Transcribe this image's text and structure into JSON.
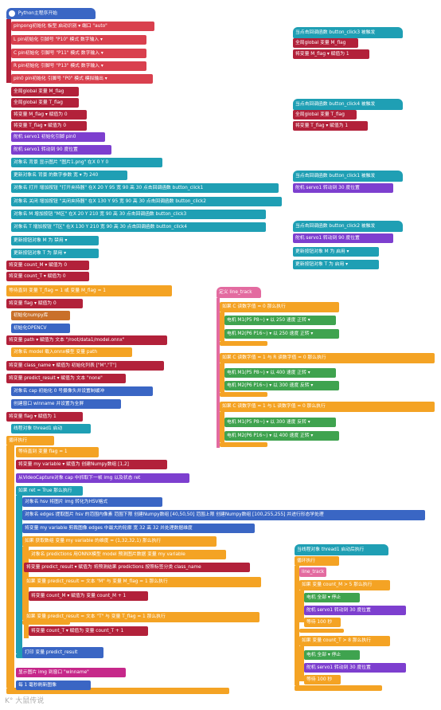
{
  "main": {
    "hat": "Python主程序开始",
    "rows": [
      "pinpong初始化 板型 启动识别 ▾ 端口 \"auto\"",
      "L pin初始化 引脚号 \"P10\" 模式 数字输入 ▾",
      "C pin初始化 引脚号 \"P11\" 模式 数字输入 ▾",
      "R pin初始化 引脚号 \"P13\" 模式 数字输入 ▾",
      "pin0 pin初始化 引脚号 \"P0\" 模式 模拟输出 ▾",
      "全局global 变量 M_flag",
      "全局global 变量 T_flag",
      "将变量 M_flag ▾ 赋值为 0",
      "将变量 T_flag ▾ 赋值为 0",
      "舵机 servo1 初始化引脚 pin0",
      "舵机 servo1 转动到 90 度位置",
      "对象名 背景 显示图片 \"图片1.png\" 在X 0 Y 0",
      "更新对象名 背景 的数字参数 宽 ▾ 为 240",
      "对象名 打开 增加按钮 \"打开夹持器\" 在X 20 Y 95 宽 90 高 30 点击回调函数 button_click1",
      "对象名 关闭 增加按钮 \"关闭夹持器\" 在X 130 Y 95 宽 90 高 30 点击回调函数 button_click2",
      "对象名 M 增加按钮 \"M区\" 在X 20 Y 210 宽 90 高 30 点击回调函数 button_click3",
      "对象名 T 增加按钮 \"T区\" 在X 130 Y 210 宽 90 高 30 点击回调函数 button_click4",
      "更新按钮对象 M 为 禁用 ▾",
      "更新按钮对象 T 为 禁用 ▾",
      "将变量 count_M ▾ 赋值为 0",
      "将变量 count_T ▾ 赋值为 0",
      "等待直到 变量 T_flag = 1 或 变量 M_flag = 1",
      "将变量 flag ▾ 赋值为 0",
      "初始化numpy库",
      "初始化OPENCV",
      "将变量 path ▾ 赋值为 文本 \"/root/data1/model.onnx\"",
      "对象名 model 载入onnx模型 变量 path",
      "将变量 class_name ▾ 赋值为 初始化列表 [\"M\",\"T\"]",
      "将变量 predict_result ▾ 赋值为 文本 \"none\"",
      "对象名 cap 初始化 0 号摄像头并设置制缓冲",
      "创建窗口 winname 并设置为全屏",
      "将变量 flag ▾ 赋值为 1",
      "线程对象 thread1 启动",
      "循环执行",
      "等待直到 变量 flag = 1",
      "将变量 my variable ▾ 赋值为 创建Numpy数组 [1,2]",
      "从VideoCapture对象 cap 中抓取下一帧 img 以及状态 ret",
      "如果 ret = True 那么执行",
      "对象名 hsv 将图片 img 转化为HSV格式",
      "对象名 edges 提取图片 hsv 的范围内像素 范围下限 创建Numpy数组 [40,50,50] 范围上限 创建Numpy数组 [100,255,255] 并进行形态学处理",
      "将变量 my variable 剪裁图像 edges 中最大的轮廓 宽 32 高 32 并处理数据维度",
      "如果 获取数组 变量 my variable 的维度 = (1,32,32,1) 那么执行",
      "对象名 predictions 用ONNX模型 model 预测图片数据 变量 my variable",
      "将变量 predict_result ▾ 赋值为 将预测结果 predictions 按照标签分类 class_name",
      "如果 变量 predict_result = 文本 \"M\" 与 变量 M_flag = 1 那么执行",
      "将变量 count_M ▾ 赋值为 变量 count_M + 1",
      "如果 变量 predict_result = 文本 \"T\" 与 变量 T_flag = 1 那么执行",
      "将变量 count_T ▾ 赋值为 变量 count_T + 1",
      "打印 变量 predict_result",
      "显示图片 img 到窗口 \"winname\"",
      "每 1 毫秒刷新图像"
    ]
  },
  "cb3": {
    "hat": "当点击回调函数 button_click3 被触发",
    "rows": [
      "全局global 变量 M_flag",
      "将变量 M_flag ▾ 赋值为 1"
    ]
  },
  "cb4": {
    "hat": "当点击回调函数 button_click4 被触发",
    "rows": [
      "全局global 变量 T_flag",
      "将变量 T_flag ▾ 赋值为 1"
    ]
  },
  "cb1": {
    "hat": "当点击回调函数 button_click1 被触发",
    "rows": [
      "舵机 servo1 转动到 30 度位置"
    ]
  },
  "cb2": {
    "hat": "当点击回调函数 button_click2 被触发",
    "rows": [
      "舵机 servo1 转动到 90 度位置",
      "更新按钮对象 M 为 启用 ▾",
      "更新按钮对象 T 为 启用 ▾"
    ]
  },
  "linetrack": {
    "hat": "定义 line_track",
    "rows": [
      "如果 C 读数字值 = 0 那么执行",
      "电机 M1(P5 P8~) ▾ 以 250 速度 正转 ▾",
      "电机 M2(P6 P16~) ▾ 以 250 速度 正转 ▾",
      "如果 C 读数字值 = 1 与 R 读数字值 = 0 那么执行",
      "电机 M1(P5 P8~) ▾ 以 400 速度 正转 ▾",
      "电机 M2(P6 P16~) ▾ 以 300 速度 反转 ▾",
      "如果 C 读数字值 = 1 与 L 读数字值 = 0 那么执行",
      "电机 M1(P5 P8~) ▾ 以 300 速度 反转 ▾",
      "电机 M2(P6 P16~) ▾ 以 400 速度 正转 ▾"
    ]
  },
  "thread": {
    "hat": "当线程对象 thread1 启动后执行",
    "rows": [
      "循环执行",
      "line_track",
      "如果 变量 count_M > 5 那么执行",
      "电机 全部 ▾ 停止",
      "舵机 servo1 转动到 30 度位置",
      "等待 100 秒",
      "如果 变量 count_T > 8 那么执行",
      "电机 全部 ▾ 停止",
      "舵机 servo1 转动到 30 度位置",
      "等待 100 秒"
    ]
  },
  "watermark": "K° 大鼠传说",
  "colors": {
    "red": "#d9404e",
    "crimson": "#b2213a",
    "cyan": "#1f9fb4",
    "blue": "#3a66c4",
    "purple": "#7d3fcf",
    "orange": "#f4a324",
    "pink": "#e36ba0",
    "green": "#3fa34f",
    "magenta": "#c6288a",
    "lime": "#9cca2e",
    "brown": "#c9702a"
  }
}
